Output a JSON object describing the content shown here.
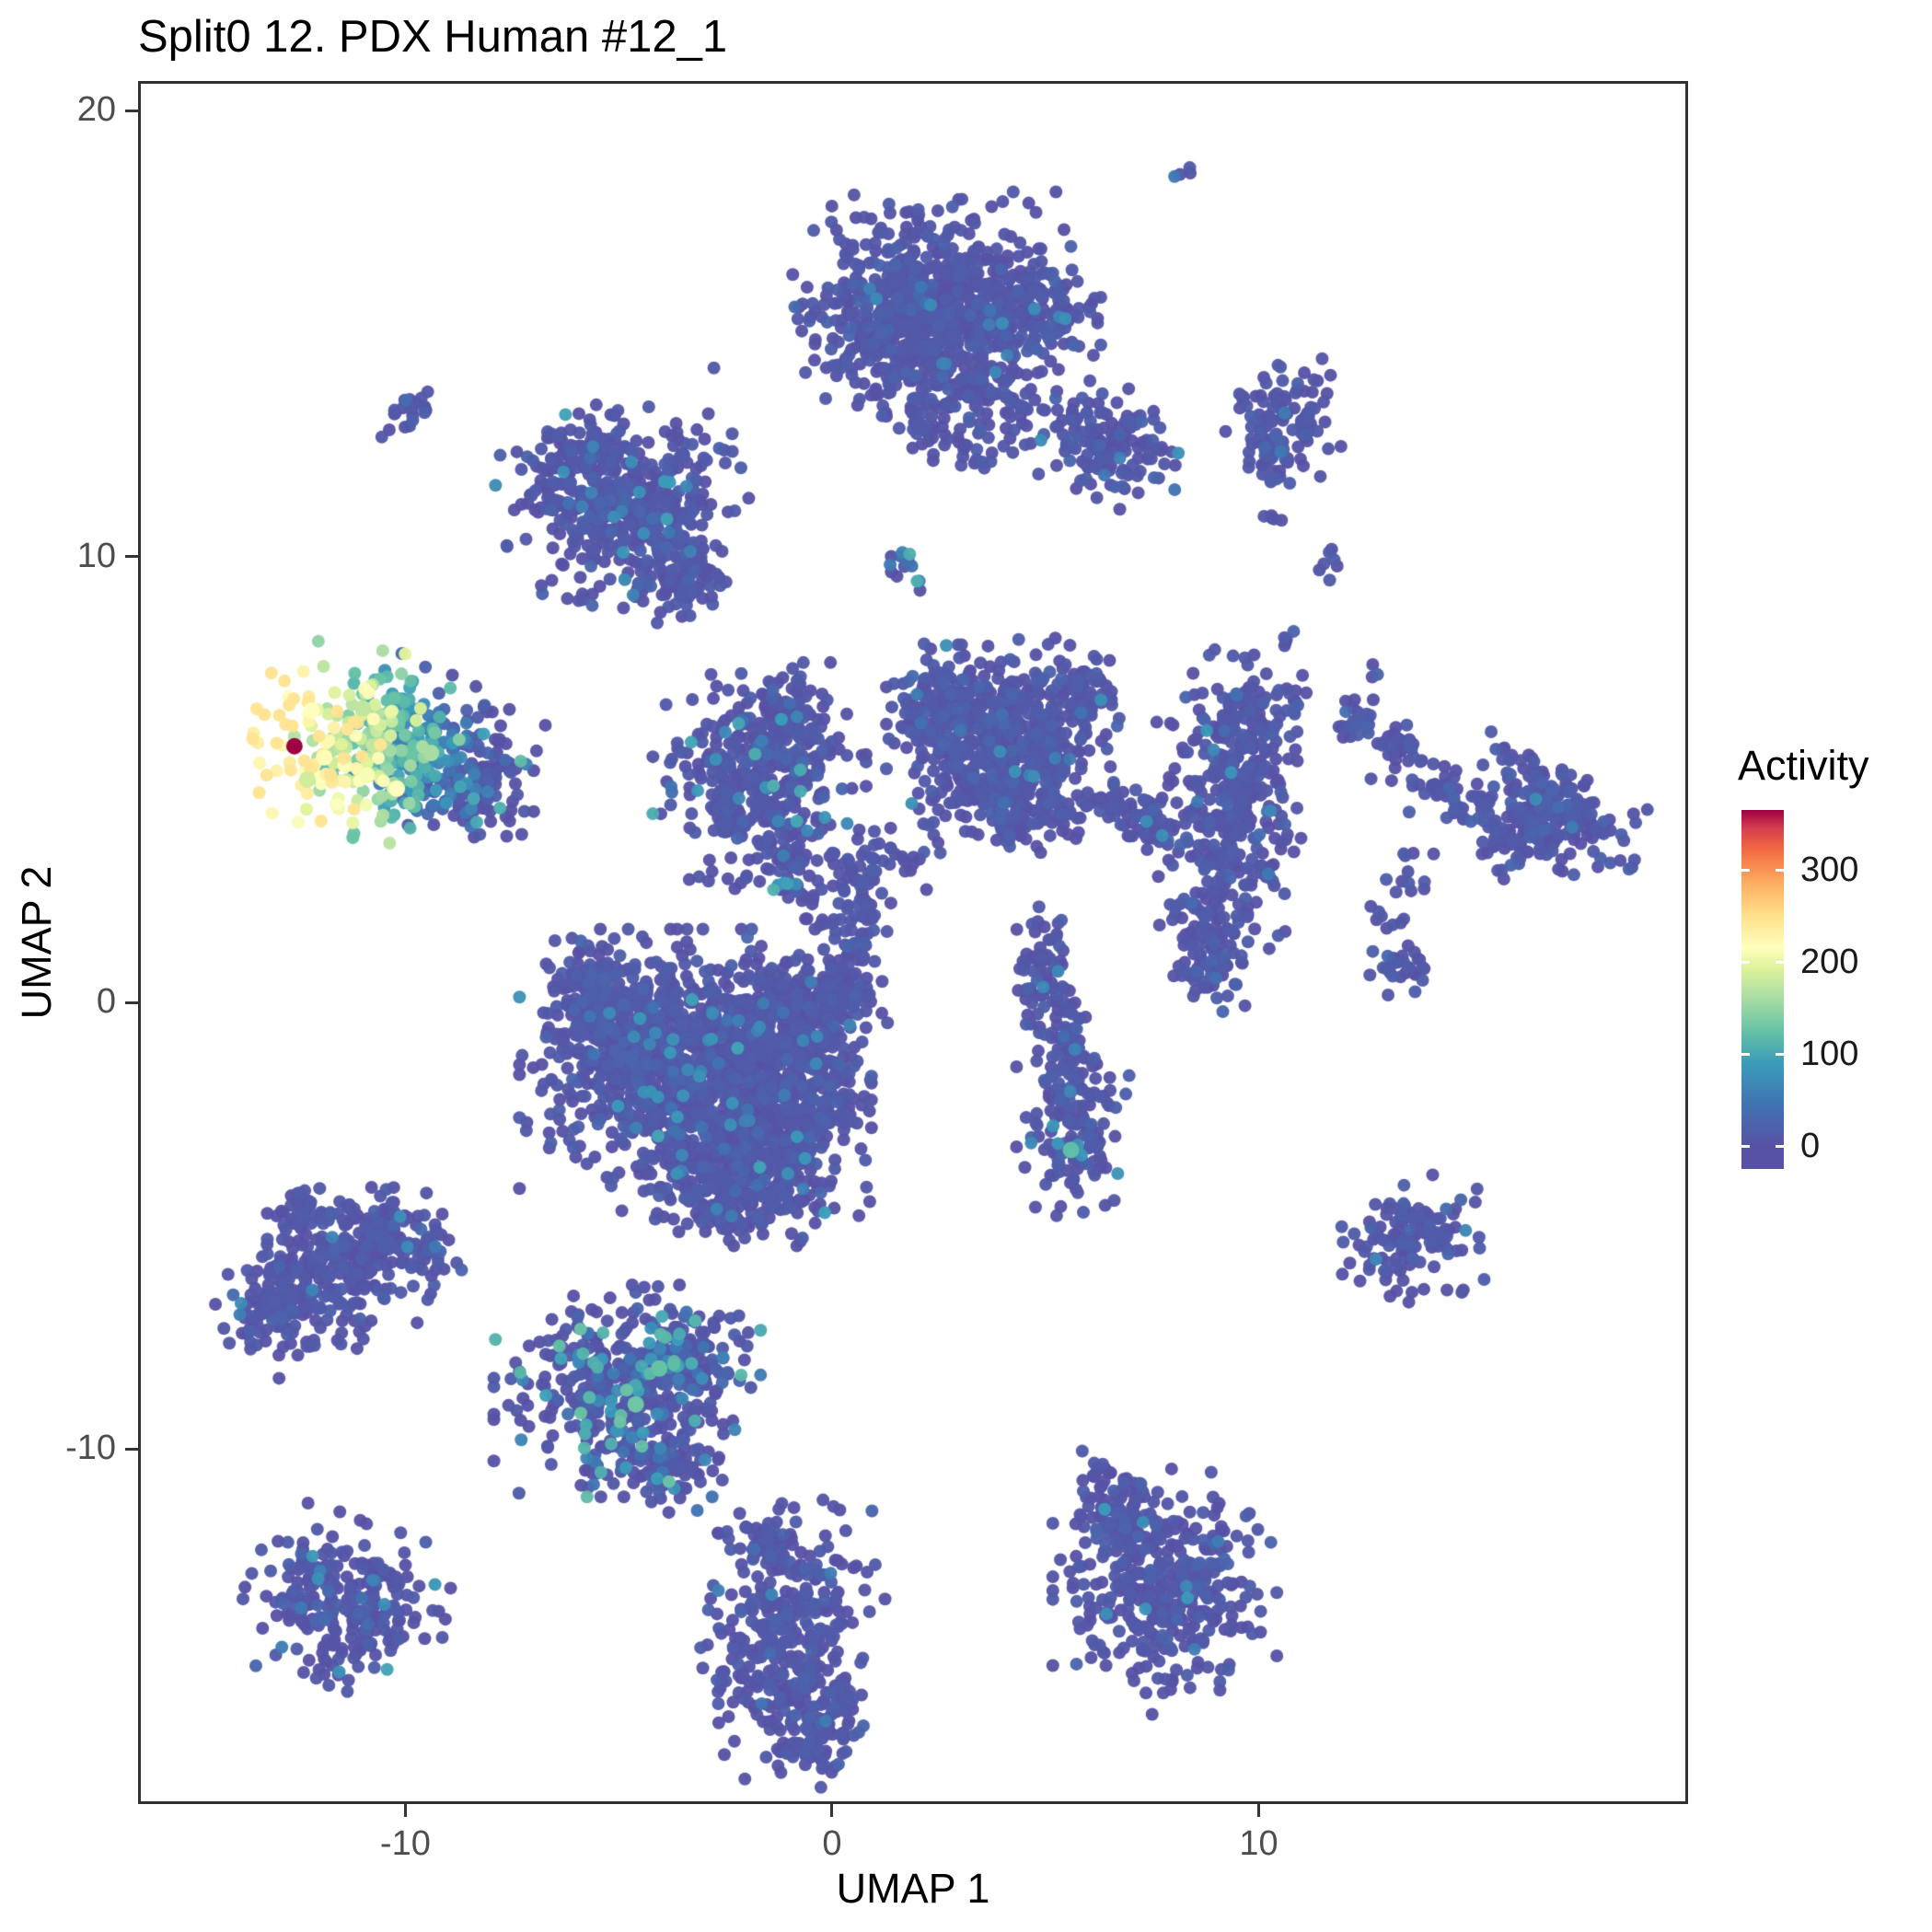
{
  "chart_data": {
    "type": "scatter",
    "title": "Split0 12. PDX Human #12_1",
    "xlabel": "UMAP 1",
    "ylabel": "UMAP 2",
    "xlim": [
      -16.2,
      20.0
    ],
    "ylim": [
      -17.9,
      20.6
    ],
    "x_ticks": [
      -10,
      0,
      10
    ],
    "y_ticks": [
      -10,
      0,
      10,
      20
    ],
    "grid": false,
    "point_radius_px": 7,
    "seed": 42,
    "legend": {
      "title": "Activity",
      "position": "right",
      "ticks": [
        0,
        100,
        200,
        300
      ],
      "domain": [
        -25,
        365
      ]
    },
    "colormap": [
      {
        "v": 0,
        "c": "#5752a5"
      },
      {
        "v": 45,
        "c": "#4173b2"
      },
      {
        "v": 90,
        "c": "#3a9cb9"
      },
      {
        "v": 125,
        "c": "#66c2a5"
      },
      {
        "v": 160,
        "c": "#a8dca3"
      },
      {
        "v": 195,
        "c": "#e0f39a"
      },
      {
        "v": 215,
        "c": "#feffbe"
      },
      {
        "v": 250,
        "c": "#fee08b"
      },
      {
        "v": 285,
        "c": "#fdae61"
      },
      {
        "v": 320,
        "c": "#f46d43"
      },
      {
        "v": 345,
        "c": "#d53e4f"
      },
      {
        "v": 365,
        "c": "#9e0142"
      }
    ],
    "clusters": [
      {
        "name": "top-dot",
        "x": 8.3,
        "y": 18.6,
        "sx": 0.15,
        "sy": 0.12,
        "n": 4
      },
      {
        "name": "top-main-a",
        "x": 2.6,
        "y": 15.8,
        "sx": 1.45,
        "sy": 0.95,
        "n": 500
      },
      {
        "name": "top-main-b",
        "x": 1.5,
        "y": 15.0,
        "sx": 0.9,
        "sy": 0.8,
        "n": 220
      },
      {
        "name": "top-main-c",
        "x": 4.3,
        "y": 15.4,
        "sx": 0.8,
        "sy": 0.6,
        "n": 150
      },
      {
        "name": "top-main-d",
        "x": 3.1,
        "y": 13.9,
        "sx": 0.5,
        "sy": 0.5,
        "n": 80
      },
      {
        "name": "top-sat-a",
        "x": 2.2,
        "y": 13.0,
        "sx": 0.35,
        "sy": 0.45,
        "n": 40
      },
      {
        "name": "top-sat-b",
        "x": 3.4,
        "y": 12.5,
        "sx": 0.25,
        "sy": 0.3,
        "n": 20
      },
      {
        "name": "top-sat-c",
        "x": 4.4,
        "y": 13.2,
        "sx": 0.3,
        "sy": 0.35,
        "n": 25
      },
      {
        "name": "top-right-blob",
        "x": 6.4,
        "y": 12.5,
        "sx": 0.75,
        "sy": 0.55,
        "n": 140,
        "rot": -20
      },
      {
        "name": "right-droplet-a",
        "x": 10.6,
        "y": 13.1,
        "sx": 0.55,
        "sy": 0.6,
        "n": 90
      },
      {
        "name": "right-droplet-b",
        "x": 10.3,
        "y": 12.2,
        "sx": 0.25,
        "sy": 0.45,
        "n": 30
      },
      {
        "name": "right-droplet-dot",
        "x": 10.3,
        "y": 10.9,
        "sx": 0.12,
        "sy": 0.12,
        "n": 5
      },
      {
        "name": "upper-left-a",
        "x": -4.9,
        "y": 11.2,
        "sx": 1.15,
        "sy": 0.95,
        "n": 420,
        "rot": 15,
        "spk": 0.05,
        "smax": 100
      },
      {
        "name": "upper-left-b",
        "x": -3.6,
        "y": 9.6,
        "sx": 0.5,
        "sy": 0.55,
        "n": 90,
        "spk": 0.05,
        "smax": 90
      },
      {
        "name": "upper-left-c",
        "x": -5.9,
        "y": 12.3,
        "sx": 0.6,
        "sy": 0.4,
        "n": 80
      },
      {
        "name": "tiny-diagonal",
        "x": -9.9,
        "y": 13.3,
        "sx": 0.38,
        "sy": 0.16,
        "n": 25,
        "rot": 30
      },
      {
        "name": "teal-dash",
        "x": 1.6,
        "y": 9.8,
        "sx": 0.18,
        "sy": 0.3,
        "n": 14,
        "rot": 40,
        "spk": 0.5,
        "smax": 110
      },
      {
        "name": "tiny-right-pair",
        "x": 11.7,
        "y": 9.9,
        "sx": 0.15,
        "sy": 0.2,
        "n": 7
      },
      {
        "name": "hot-cluster",
        "x": -10.2,
        "y": 5.7,
        "sx": 1.35,
        "sy": 0.85,
        "n": 430,
        "rot": -8,
        "hot": true
      },
      {
        "name": "hot-tail",
        "x": -8.3,
        "y": 4.9,
        "sx": 0.5,
        "sy": 0.45,
        "n": 80,
        "spk": 0.15,
        "smax": 120
      },
      {
        "name": "mid-blob-a",
        "x": -1.7,
        "y": 5.0,
        "sx": 1.0,
        "sy": 1.05,
        "n": 380,
        "spk": 0.09,
        "smax": 110
      },
      {
        "name": "mid-blob-b",
        "x": -0.9,
        "y": 6.4,
        "sx": 0.5,
        "sy": 0.45,
        "n": 70,
        "spk": 0.07,
        "smax": 100
      },
      {
        "name": "mid-bridge",
        "x": -0.9,
        "y": 3.1,
        "sx": 0.3,
        "sy": 0.55,
        "n": 40,
        "spk": 0.05,
        "smax": 90
      },
      {
        "name": "arrow-a",
        "x": 3.9,
        "y": 6.3,
        "sx": 1.05,
        "sy": 0.75,
        "n": 330
      },
      {
        "name": "arrow-b",
        "x": 3.0,
        "y": 5.2,
        "sx": 0.5,
        "sy": 0.8,
        "n": 120
      },
      {
        "name": "arrow-c",
        "x": 4.9,
        "y": 4.9,
        "sx": 0.45,
        "sy": 0.75,
        "n": 110
      },
      {
        "name": "arrow-d",
        "x": 4.0,
        "y": 4.3,
        "sx": 0.35,
        "sy": 0.4,
        "n": 60
      },
      {
        "name": "arrow-e",
        "x": 5.8,
        "y": 6.9,
        "sx": 0.4,
        "sy": 0.5,
        "n": 70
      },
      {
        "name": "arrow-f",
        "x": 2.4,
        "y": 6.9,
        "sx": 0.45,
        "sy": 0.45,
        "n": 70
      },
      {
        "name": "bridge-right-a",
        "x": 6.7,
        "y": 4.3,
        "sx": 0.6,
        "sy": 0.3,
        "n": 50,
        "rot": -15
      },
      {
        "name": "bridge-right-b",
        "x": 7.6,
        "y": 3.9,
        "sx": 0.3,
        "sy": 0.25,
        "n": 20
      },
      {
        "name": "trail-a",
        "x": 1.2,
        "y": 3.2,
        "sx": 0.65,
        "sy": 0.45,
        "n": 45,
        "rot": 35
      },
      {
        "name": "trail-b",
        "x": 0.3,
        "y": 2.2,
        "sx": 0.4,
        "sy": 0.45,
        "n": 35
      },
      {
        "name": "right-col-a",
        "x": 9.3,
        "y": 4.3,
        "sx": 0.75,
        "sy": 1.45,
        "n": 300,
        "rot": 8,
        "spk": 0.04,
        "smax": 100
      },
      {
        "name": "right-col-b",
        "x": 9.9,
        "y": 6.3,
        "sx": 0.45,
        "sy": 0.6,
        "n": 80
      },
      {
        "name": "right-col-c",
        "x": 8.8,
        "y": 1.8,
        "sx": 0.45,
        "sy": 0.7,
        "n": 80
      },
      {
        "name": "right-col-d",
        "x": 9.0,
        "y": 0.8,
        "sx": 0.3,
        "sy": 0.4,
        "n": 40
      },
      {
        "name": "right-col-top-dots",
        "x": 10.9,
        "y": 6.9,
        "sx": 0.2,
        "sy": 0.2,
        "n": 8
      },
      {
        "name": "arc-a",
        "x": 12.3,
        "y": 6.3,
        "sx": 0.25,
        "sy": 0.25,
        "n": 25
      },
      {
        "name": "arc-b",
        "x": 13.2,
        "y": 5.6,
        "sx": 0.3,
        "sy": 0.25,
        "n": 30
      },
      {
        "name": "arc-c",
        "x": 14.2,
        "y": 4.9,
        "sx": 0.3,
        "sy": 0.25,
        "n": 25
      },
      {
        "name": "arc-d",
        "x": 15.0,
        "y": 4.4,
        "sx": 0.25,
        "sy": 0.2,
        "n": 20
      },
      {
        "name": "far-right-arrow-a",
        "x": 16.8,
        "y": 4.4,
        "sx": 0.9,
        "sy": 0.55,
        "n": 200,
        "rot": -15
      },
      {
        "name": "far-right-arrow-b",
        "x": 16.0,
        "y": 3.6,
        "sx": 0.4,
        "sy": 0.4,
        "n": 60
      },
      {
        "name": "arc-sparse-a",
        "x": 13.6,
        "y": 2.9,
        "sx": 0.3,
        "sy": 0.3,
        "n": 12
      },
      {
        "name": "arc-sparse-b",
        "x": 12.9,
        "y": 1.9,
        "sx": 0.2,
        "sy": 0.2,
        "n": 8
      },
      {
        "name": "small-right-mid",
        "x": 13.3,
        "y": 0.8,
        "sx": 0.35,
        "sy": 0.25,
        "n": 30
      },
      {
        "name": "dot-right-a",
        "x": 12.7,
        "y": 7.4,
        "sx": 0.1,
        "sy": 0.1,
        "n": 3
      },
      {
        "name": "dot-right-b",
        "x": 10.7,
        "y": 8.2,
        "sx": 0.12,
        "sy": 0.12,
        "n": 4
      },
      {
        "name": "central-a",
        "x": -3.2,
        "y": -1.6,
        "sx": 1.65,
        "sy": 1.3,
        "n": 900,
        "spk": 0.05,
        "smax": 100
      },
      {
        "name": "central-b",
        "x": -1.6,
        "y": -3.2,
        "sx": 1.0,
        "sy": 0.9,
        "n": 350,
        "spk": 0.05,
        "smax": 100
      },
      {
        "name": "central-c",
        "x": -4.8,
        "y": -0.6,
        "sx": 0.8,
        "sy": 0.8,
        "n": 250,
        "spk": 0.04,
        "smax": 90
      },
      {
        "name": "central-d",
        "x": -1.2,
        "y": -0.2,
        "sx": 0.8,
        "sy": 0.6,
        "n": 200,
        "spk": 0.04,
        "smax": 90
      },
      {
        "name": "central-e",
        "x": -2.6,
        "y": -4.4,
        "sx": 0.6,
        "sy": 0.5,
        "n": 120
      },
      {
        "name": "central-f",
        "x": -0.3,
        "y": -1.4,
        "sx": 0.5,
        "sy": 0.7,
        "n": 120
      },
      {
        "name": "central-g",
        "x": 0.3,
        "y": 0.3,
        "sx": 0.4,
        "sy": 0.4,
        "n": 60
      },
      {
        "name": "central-h",
        "x": -5.6,
        "y": 0.3,
        "sx": 0.45,
        "sy": 0.5,
        "n": 90
      },
      {
        "name": "bridge-up",
        "x": 0.6,
        "y": 1.4,
        "sx": 0.35,
        "sy": 0.35,
        "n": 30
      },
      {
        "name": "branch-a",
        "x": 4.9,
        "y": 0.9,
        "sx": 0.35,
        "sy": 0.5,
        "n": 50
      },
      {
        "name": "branch-b",
        "x": 5.3,
        "y": -0.3,
        "sx": 0.3,
        "sy": 0.6,
        "n": 50
      },
      {
        "name": "branch-c",
        "x": 5.6,
        "y": -1.5,
        "sx": 0.3,
        "sy": 0.6,
        "n": 50
      },
      {
        "name": "branch-d",
        "x": 5.7,
        "y": -2.9,
        "sx": 0.55,
        "sy": 0.75,
        "n": 130,
        "spk": 0.07,
        "smax": 110
      },
      {
        "name": "left-a",
        "x": -11.8,
        "y": -6.0,
        "sx": 1.1,
        "sy": 0.75,
        "n": 280,
        "rot": 20
      },
      {
        "name": "left-b",
        "x": -13.0,
        "y": -6.9,
        "sx": 0.45,
        "sy": 0.4,
        "n": 70
      },
      {
        "name": "left-c",
        "x": -10.3,
        "y": -5.0,
        "sx": 0.5,
        "sy": 0.4,
        "n": 60
      },
      {
        "name": "left-d",
        "x": -9.4,
        "y": -5.6,
        "sx": 0.3,
        "sy": 0.3,
        "n": 30
      },
      {
        "name": "left-e",
        "x": -12.4,
        "y": -4.6,
        "sx": 0.3,
        "sy": 0.35,
        "n": 30
      },
      {
        "name": "speckled-a",
        "x": -4.8,
        "y": -8.7,
        "sx": 1.25,
        "sy": 0.95,
        "n": 420,
        "spk": 0.2,
        "smax": 130
      },
      {
        "name": "speckled-b",
        "x": -3.3,
        "y": -7.9,
        "sx": 0.6,
        "sy": 0.5,
        "n": 90,
        "spk": 0.18,
        "smax": 120
      },
      {
        "name": "speckled-c",
        "x": -4.0,
        "y": -10.3,
        "sx": 0.6,
        "sy": 0.45,
        "n": 80,
        "spk": 0.12,
        "smax": 110
      },
      {
        "name": "lone-dot-below",
        "x": -2.5,
        "y": -11.9,
        "sx": 0.12,
        "sy": 0.12,
        "n": 3
      },
      {
        "name": "bottom-a",
        "x": -1.0,
        "y": -14.3,
        "sx": 0.8,
        "sy": 1.3,
        "n": 330,
        "rot": -12,
        "spk": 0.03,
        "smax": 90
      },
      {
        "name": "bottom-b",
        "x": -0.4,
        "y": -16.4,
        "sx": 0.5,
        "sy": 0.5,
        "n": 90
      },
      {
        "name": "bottom-c",
        "x": -1.5,
        "y": -12.2,
        "sx": 0.35,
        "sy": 0.4,
        "n": 50
      },
      {
        "name": "bottom-left",
        "x": -11.4,
        "y": -13.4,
        "sx": 0.95,
        "sy": 0.8,
        "n": 260,
        "rot": -10,
        "spk": 0.05,
        "smax": 100
      },
      {
        "name": "bottom-right-a",
        "x": 7.8,
        "y": -13.2,
        "sx": 1.05,
        "sy": 1.1,
        "n": 380,
        "spk": 0.03,
        "smax": 90
      },
      {
        "name": "bottom-right-b",
        "x": 6.7,
        "y": -11.3,
        "sx": 0.45,
        "sy": 0.5,
        "n": 80
      },
      {
        "name": "bottom-right-dot",
        "x": 6.3,
        "y": -10.4,
        "sx": 0.15,
        "sy": 0.15,
        "n": 5
      },
      {
        "name": "right-small",
        "x": 13.6,
        "y": -5.3,
        "sx": 0.7,
        "sy": 0.55,
        "n": 130,
        "rot": 10,
        "spk": 0.03,
        "smax": 80
      }
    ],
    "highlight_points": [
      [
        -12.6,
        5.75,
        370
      ],
      [
        -12.2,
        6.55,
        215
      ],
      [
        -11.9,
        5.5,
        220
      ],
      [
        -10.9,
        5.1,
        210
      ],
      [
        -10.2,
        4.8,
        215
      ],
      [
        -12.3,
        5.0,
        185
      ],
      [
        -11.0,
        6.6,
        175
      ],
      [
        -9.4,
        5.6,
        160
      ],
      [
        5.6,
        -3.3,
        120
      ],
      [
        -4.6,
        -9.0,
        130
      ],
      [
        -4.05,
        -8.2,
        125
      ]
    ]
  },
  "style": {
    "background": "#ffffff",
    "panel_border": "#303030",
    "tick_color": "#333333",
    "tick_label_color": "#4d4d4d",
    "title_color": "#000000",
    "axis_title_color": "#000000",
    "base_point_color": "#5752a5"
  }
}
